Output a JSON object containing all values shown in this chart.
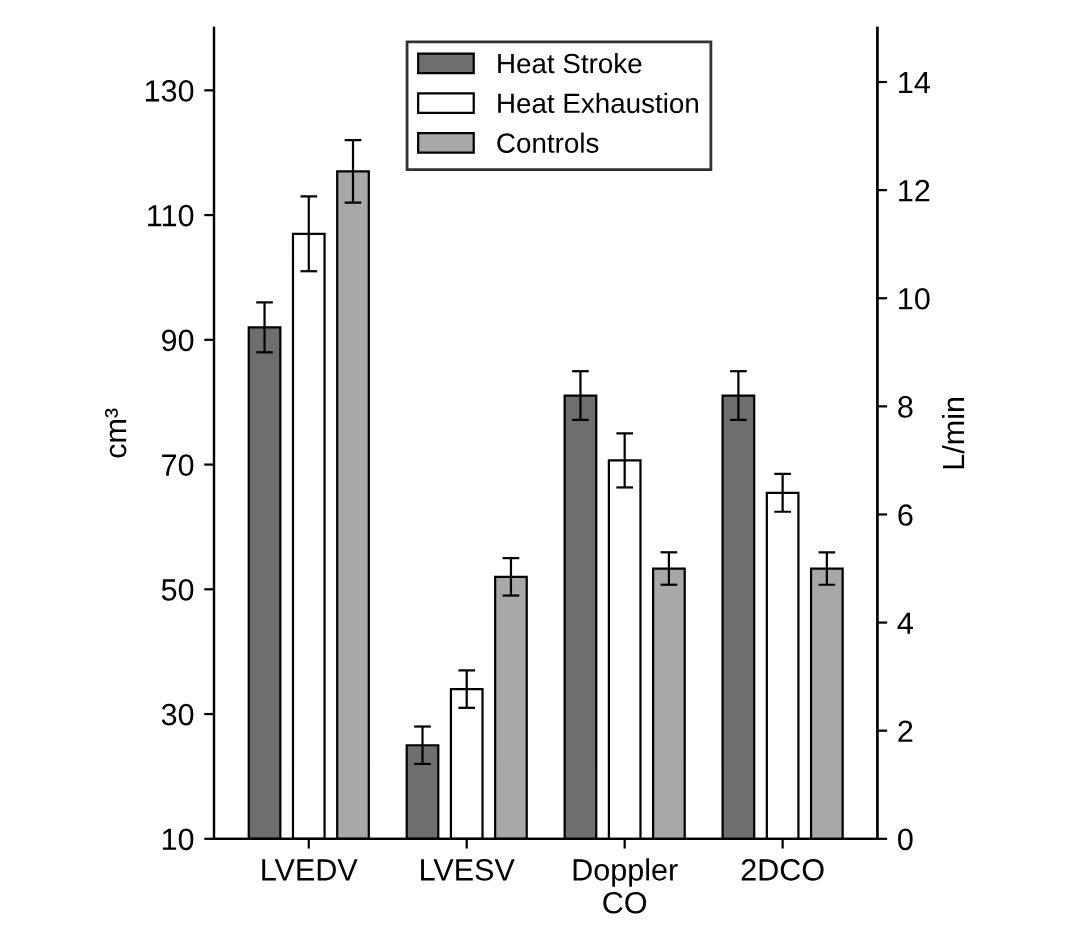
{
  "chart_data": {
    "type": "bar",
    "ylabel": "cm³",
    "y2label": "L/min",
    "categories": [
      "LVEDV",
      "LVESV",
      "Doppler\nCO",
      "2DCO"
    ],
    "series": [
      {
        "name": "Heat Stroke",
        "color": "#6e6e6e",
        "values": [
          92,
          25,
          null,
          null
        ],
        "errors": [
          4,
          3,
          null,
          null
        ]
      },
      {
        "name": "Heat Exhaustion",
        "color": "#ffffff",
        "values": [
          107,
          34,
          null,
          null
        ],
        "errors": [
          6,
          3,
          null,
          null
        ]
      },
      {
        "name": "Controls",
        "color": "#a8a8a8",
        "values": [
          117,
          52,
          null,
          null
        ],
        "errors": [
          5,
          3,
          null,
          null
        ]
      },
      {
        "color": "#6e6e6e",
        "axis": "y2",
        "values": [
          null,
          null,
          8.2,
          8.2
        ],
        "errors": [
          null,
          null,
          0.45,
          0.45
        ]
      },
      {
        "color": "#ffffff",
        "axis": "y2",
        "values": [
          null,
          null,
          7.0,
          6.4
        ],
        "errors": [
          null,
          null,
          0.5,
          0.35
        ]
      },
      {
        "color": "#a8a8a8",
        "axis": "y2",
        "values": [
          null,
          null,
          5.0,
          5.0
        ],
        "errors": [
          null,
          null,
          0.3,
          0.3
        ]
      }
    ],
    "ylim": [
      10,
      140
    ],
    "yticks": [
      10,
      30,
      50,
      70,
      90,
      110,
      130
    ],
    "y2lim": [
      0,
      15
    ],
    "y2ticks": [
      0,
      2,
      4,
      6,
      8,
      10,
      12,
      14
    ],
    "legend": "top",
    "grid": false
  }
}
